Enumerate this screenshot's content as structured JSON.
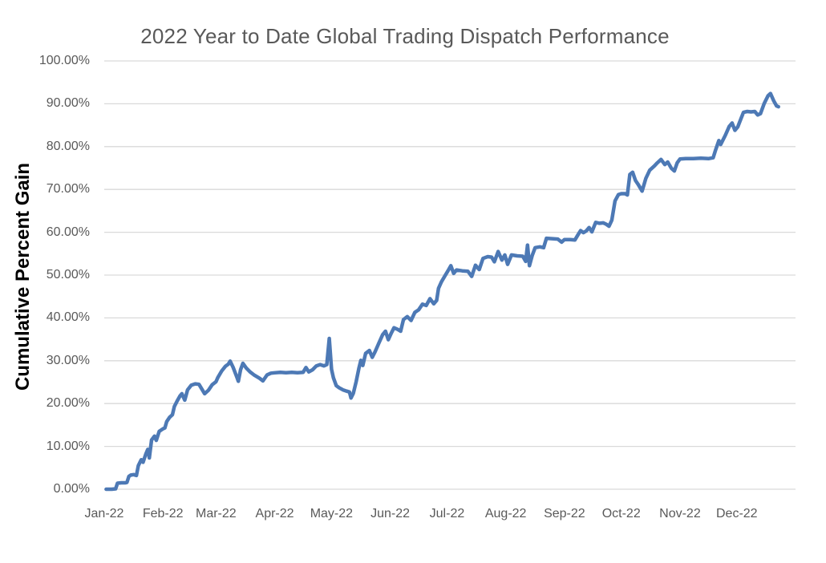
{
  "chart": {
    "title": "2022 Year to Date Global Trading Dispatch Performance",
    "y_axis_title": "Cumulative Percent Gain"
  },
  "chart_data": {
    "type": "line",
    "title": "2022 Year to Date Global Trading Dispatch Performance",
    "xlabel": "",
    "ylabel": "Cumulative Percent Gain",
    "grid": true,
    "legend": "none",
    "line_color": "#4d79b5",
    "gridline_color": "#d9d9d9",
    "tick_label_color": "#595959",
    "title_color": "#595959",
    "ylim": [
      0,
      100
    ],
    "x_range_days": [
      0,
      365
    ],
    "y_ticks": [
      {
        "value": 100,
        "label": "100.00%"
      },
      {
        "value": 90,
        "label": "90.00%"
      },
      {
        "value": 80,
        "label": "80.00%"
      },
      {
        "value": 70,
        "label": "70.00%"
      },
      {
        "value": 60,
        "label": "60.00%"
      },
      {
        "value": 50,
        "label": "50.00%"
      },
      {
        "value": 40,
        "label": "40.00%"
      },
      {
        "value": 30,
        "label": "30.00%"
      },
      {
        "value": 20,
        "label": "20.00%"
      },
      {
        "value": 10,
        "label": "10.00%"
      },
      {
        "value": 0,
        "label": "0.00%"
      }
    ],
    "x_ticks": [
      {
        "day": 0,
        "label": "Jan-22"
      },
      {
        "day": 31,
        "label": "Feb-22"
      },
      {
        "day": 59,
        "label": "Mar-22"
      },
      {
        "day": 90,
        "label": "Apr-22"
      },
      {
        "day": 120,
        "label": "May-22"
      },
      {
        "day": 151,
        "label": "Jun-22"
      },
      {
        "day": 181,
        "label": "Jul-22"
      },
      {
        "day": 212,
        "label": "Aug-22"
      },
      {
        "day": 243,
        "label": "Sep-22"
      },
      {
        "day": 273,
        "label": "Oct-22"
      },
      {
        "day": 304,
        "label": "Nov-22"
      },
      {
        "day": 334,
        "label": "Dec-22"
      }
    ],
    "series": [
      {
        "name": "Cumulative Percent Gain",
        "x_unit": "day_of_year_2022",
        "y_unit": "percent",
        "points": [
          [
            1,
            0
          ],
          [
            4,
            0
          ],
          [
            6,
            0.1
          ],
          [
            7,
            1.4
          ],
          [
            9,
            1.5
          ],
          [
            11,
            1.5
          ],
          [
            12,
            1.6
          ],
          [
            13,
            3.0
          ],
          [
            14,
            3.3
          ],
          [
            15.5,
            3.4
          ],
          [
            17,
            3.2
          ],
          [
            18,
            5.5
          ],
          [
            19.5,
            6.9
          ],
          [
            20.5,
            6.3
          ],
          [
            22,
            8.3
          ],
          [
            23,
            9.3
          ],
          [
            23.8,
            7.3
          ],
          [
            25,
            11.5
          ],
          [
            26.5,
            12.4
          ],
          [
            27.5,
            11.4
          ],
          [
            29,
            13.5
          ],
          [
            31,
            14.1
          ],
          [
            32,
            14.3
          ],
          [
            33,
            15.8
          ],
          [
            34.5,
            16.8
          ],
          [
            36,
            17.4
          ],
          [
            37,
            19.3
          ],
          [
            38.5,
            20.6
          ],
          [
            40,
            21.8
          ],
          [
            41,
            22.3
          ],
          [
            42.5,
            20.8
          ],
          [
            44,
            23.2
          ],
          [
            46,
            24.3
          ],
          [
            48,
            24.6
          ],
          [
            50,
            24.5
          ],
          [
            53,
            22.3
          ],
          [
            55,
            23.1
          ],
          [
            57,
            24.4
          ],
          [
            59,
            25.1
          ],
          [
            60,
            26.1
          ],
          [
            62,
            27.6
          ],
          [
            64,
            28.7
          ],
          [
            65.5,
            29.2
          ],
          [
            66.5,
            29.9
          ],
          [
            68,
            28.5
          ],
          [
            70,
            26.2
          ],
          [
            70.8,
            25.2
          ],
          [
            72,
            27.9
          ],
          [
            73.2,
            29.4
          ],
          [
            75,
            28.3
          ],
          [
            77,
            27.4
          ],
          [
            79,
            26.7
          ],
          [
            82,
            25.9
          ],
          [
            83.8,
            25.3
          ],
          [
            86,
            26.7
          ],
          [
            88,
            27.1
          ],
          [
            90,
            27.2
          ],
          [
            93,
            27.3
          ],
          [
            96,
            27.2
          ],
          [
            99,
            27.3
          ],
          [
            102,
            27.2
          ],
          [
            105,
            27.3
          ],
          [
            106.5,
            28.4
          ],
          [
            108,
            27.4
          ],
          [
            110,
            27.9
          ],
          [
            112,
            28.8
          ],
          [
            114,
            29.1
          ],
          [
            116,
            28.8
          ],
          [
            117.5,
            29.1
          ],
          [
            118.8,
            35.2
          ],
          [
            120,
            28.0
          ],
          [
            121,
            26.0
          ],
          [
            122.5,
            24.2
          ],
          [
            124,
            23.7
          ],
          [
            126,
            23.2
          ],
          [
            128,
            22.9
          ],
          [
            129.5,
            22.7
          ],
          [
            130.3,
            21.3
          ],
          [
            131.5,
            22.4
          ],
          [
            133,
            25.1
          ],
          [
            134.5,
            28.3
          ],
          [
            135.5,
            30.1
          ],
          [
            136.5,
            28.9
          ],
          [
            138,
            31.7
          ],
          [
            140,
            32.4
          ],
          [
            141.5,
            30.8
          ],
          [
            143,
            32.1
          ],
          [
            145,
            34.1
          ],
          [
            147,
            36.1
          ],
          [
            148.5,
            36.9
          ],
          [
            150,
            34.9
          ],
          [
            151.5,
            36.4
          ],
          [
            153,
            37.7
          ],
          [
            155,
            37.3
          ],
          [
            156.5,
            36.9
          ],
          [
            158,
            39.6
          ],
          [
            160,
            40.3
          ],
          [
            162,
            39.4
          ],
          [
            164,
            41.3
          ],
          [
            166,
            41.9
          ],
          [
            168,
            43.2
          ],
          [
            170,
            42.9
          ],
          [
            172,
            44.5
          ],
          [
            174,
            43.3
          ],
          [
            175.5,
            44.1
          ],
          [
            176.5,
            46.9
          ],
          [
            178,
            48.4
          ],
          [
            180,
            49.9
          ],
          [
            181.5,
            51.0
          ],
          [
            183,
            52.2
          ],
          [
            184.5,
            50.4
          ],
          [
            186,
            51.2
          ],
          [
            189,
            51.0
          ],
          [
            192,
            50.9
          ],
          [
            194,
            49.7
          ],
          [
            196,
            52.3
          ],
          [
            198,
            51.3
          ],
          [
            200,
            53.9
          ],
          [
            202.5,
            54.3
          ],
          [
            204.5,
            54.2
          ],
          [
            206,
            53.1
          ],
          [
            208,
            55.5
          ],
          [
            210,
            53.5
          ],
          [
            211.5,
            54.7
          ],
          [
            213,
            52.5
          ],
          [
            215,
            54.7
          ],
          [
            218,
            54.5
          ],
          [
            221,
            54.4
          ],
          [
            222.5,
            53.2
          ],
          [
            223.5,
            57.0
          ],
          [
            224.5,
            52.2
          ],
          [
            226,
            54.6
          ],
          [
            227.5,
            56.4
          ],
          [
            230,
            56.6
          ],
          [
            232,
            56.4
          ],
          [
            233.5,
            58.6
          ],
          [
            236.5,
            58.5
          ],
          [
            239.5,
            58.4
          ],
          [
            241.5,
            57.7
          ],
          [
            243,
            58.3
          ],
          [
            246,
            58.3
          ],
          [
            248.5,
            58.2
          ],
          [
            250,
            59.3
          ],
          [
            251.5,
            60.4
          ],
          [
            253,
            59.9
          ],
          [
            254.5,
            60.3
          ],
          [
            256,
            61.1
          ],
          [
            257.5,
            60.1
          ],
          [
            259.5,
            62.3
          ],
          [
            261.5,
            62.1
          ],
          [
            263.5,
            62.2
          ],
          [
            265,
            61.9
          ],
          [
            266.5,
            61.4
          ],
          [
            268,
            62.8
          ],
          [
            269.7,
            67.3
          ],
          [
            271.5,
            68.8
          ],
          [
            273,
            69.0
          ],
          [
            275,
            69.0
          ],
          [
            276.2,
            68.7
          ],
          [
            277.5,
            73.5
          ],
          [
            279,
            74.0
          ],
          [
            280.5,
            72.1
          ],
          [
            282,
            71.1
          ],
          [
            284,
            69.6
          ],
          [
            286,
            72.6
          ],
          [
            288,
            74.5
          ],
          [
            290.5,
            75.5
          ],
          [
            292,
            76.2
          ],
          [
            294,
            77.0
          ],
          [
            296,
            75.8
          ],
          [
            297.5,
            76.4
          ],
          [
            299.5,
            74.9
          ],
          [
            301,
            74.3
          ],
          [
            302.5,
            76.2
          ],
          [
            304,
            77.1
          ],
          [
            307,
            77.2
          ],
          [
            311,
            77.2
          ],
          [
            315,
            77.3
          ],
          [
            319,
            77.2
          ],
          [
            321.5,
            77.4
          ],
          [
            322.8,
            79.2
          ],
          [
            324.5,
            81.4
          ],
          [
            325.5,
            80.5
          ],
          [
            328,
            82.7
          ],
          [
            330,
            84.7
          ],
          [
            331.5,
            85.5
          ],
          [
            333,
            83.8
          ],
          [
            334.5,
            84.6
          ],
          [
            336,
            86.3
          ],
          [
            337.5,
            88.0
          ],
          [
            339.5,
            88.2
          ],
          [
            341.5,
            88.1
          ],
          [
            343.5,
            88.2
          ],
          [
            345,
            87.4
          ],
          [
            346.5,
            87.7
          ],
          [
            348.5,
            90.1
          ],
          [
            350.5,
            91.9
          ],
          [
            351.8,
            92.4
          ],
          [
            353.5,
            90.7
          ],
          [
            355,
            89.5
          ],
          [
            356,
            89.3
          ]
        ]
      }
    ]
  }
}
